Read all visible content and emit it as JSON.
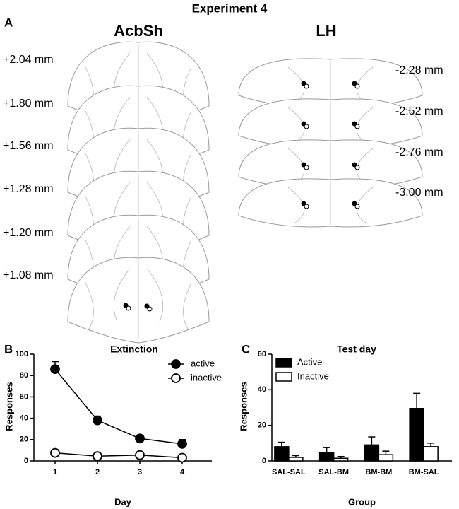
{
  "figure": {
    "title": "Experiment 4",
    "panel_labels": [
      "A",
      "B",
      "C"
    ],
    "panel_a": {
      "acbsh": {
        "title": "AcbSh",
        "levels": [
          "+2.04 mm",
          "+1.80 mm",
          "+1.56 mm",
          "+1.28 mm",
          "+1.20 mm",
          "+1.08 mm"
        ]
      },
      "lh": {
        "title": "LH",
        "levels": [
          "-2.28 mm",
          "-2.52 mm",
          "-2.76 mm",
          "-3.00 mm"
        ]
      }
    }
  },
  "chart_data": [
    {
      "type": "line",
      "title": "Extinction",
      "x_label": "Day",
      "y_label": "Responses",
      "x": [
        1,
        2,
        3,
        4
      ],
      "xlim": [
        0.5,
        4.7
      ],
      "xticks": [
        1,
        2,
        3,
        4
      ],
      "ylim": [
        0,
        100
      ],
      "yticks": [
        0,
        20,
        40,
        60,
        80,
        100
      ],
      "legend": "upper right",
      "series": [
        {
          "name": "active",
          "color": "#000000",
          "values": [
            86,
            38,
            21,
            16
          ],
          "errors": [
            7,
            4,
            1.5,
            4
          ]
        },
        {
          "name": "inactive",
          "color": "#ffffff",
          "values": [
            7.5,
            4.5,
            5.5,
            3
          ],
          "errors": [
            1,
            0.8,
            1,
            0.8
          ]
        }
      ]
    },
    {
      "type": "bar",
      "title": "Test day",
      "x_label": "Group",
      "y_label": "Responses",
      "categories": [
        "SAL-SAL",
        "SAL-BM",
        "BM-BM",
        "BM-SAL"
      ],
      "ylim": [
        0,
        60
      ],
      "yticks": [
        0,
        20,
        40,
        60
      ],
      "legend": "upper left",
      "series": [
        {
          "name": "Active",
          "color": "#000000",
          "values": [
            8,
            4.5,
            9,
            29.5
          ],
          "errors": [
            2.5,
            3,
            4.5,
            8.5
          ]
        },
        {
          "name": "Inactive",
          "color": "#ffffff",
          "values": [
            2,
            1.5,
            3.5,
            8
          ],
          "errors": [
            1,
            1,
            2,
            2
          ]
        }
      ]
    }
  ]
}
